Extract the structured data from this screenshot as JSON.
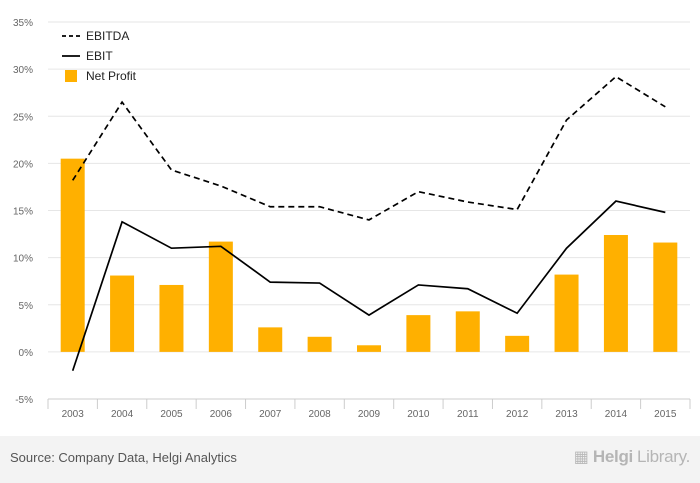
{
  "chart_data": {
    "type": "bar",
    "categories": [
      "2003",
      "2004",
      "2005",
      "2006",
      "2007",
      "2008",
      "2009",
      "2010",
      "2011",
      "2012",
      "2013",
      "2014",
      "2015"
    ],
    "series": [
      {
        "name": "EBITDA",
        "kind": "line",
        "style": "dashed",
        "values": [
          18.2,
          26.5,
          19.3,
          17.6,
          15.4,
          15.4,
          14.0,
          17.0,
          15.9,
          15.1,
          24.6,
          29.2,
          26.0
        ]
      },
      {
        "name": "EBIT",
        "kind": "line",
        "style": "solid",
        "values": [
          -2.0,
          13.8,
          11.0,
          11.2,
          7.4,
          7.3,
          3.9,
          7.1,
          6.7,
          4.1,
          11.0,
          16.0,
          14.8
        ]
      },
      {
        "name": "Net Profit",
        "kind": "bar",
        "values": [
          20.5,
          8.1,
          7.1,
          11.7,
          2.6,
          1.6,
          0.7,
          3.9,
          4.3,
          1.7,
          8.2,
          12.4,
          11.6
        ]
      }
    ],
    "y_ticks": [
      "-5%",
      "0%",
      "5%",
      "10%",
      "15%",
      "20%",
      "25%",
      "30%",
      "35%"
    ],
    "ylim": [
      -5,
      35
    ],
    "grid": true,
    "legend_position": "top-left",
    "colors": {
      "bar": "#ffb000",
      "lines": "#000000",
      "grid": "#e6e6e6",
      "axis_text": "#666666"
    }
  },
  "footer": {
    "source": "Source: Company Data, Helgi Analytics",
    "brand_bold": "Helgi",
    "brand_rest": "Library.",
    "brand_icon": "helgi-logo-icon"
  }
}
